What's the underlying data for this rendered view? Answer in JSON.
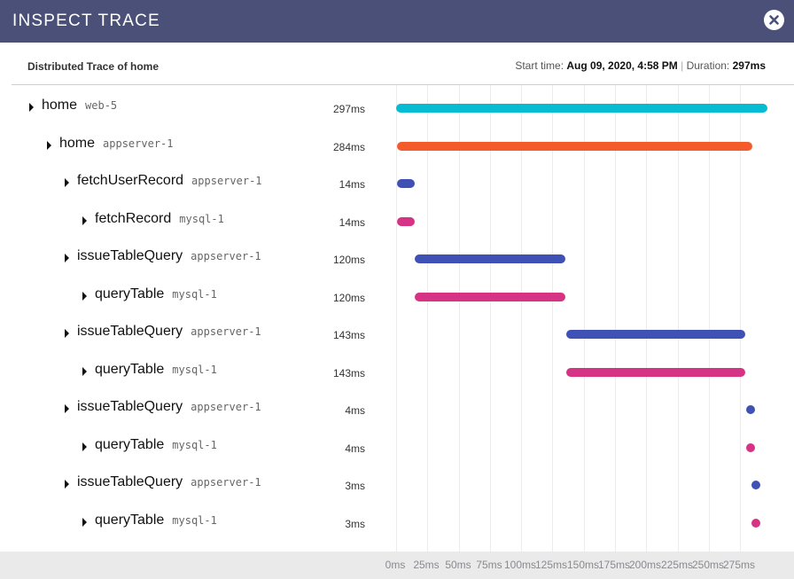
{
  "window": {
    "title": "INSPECT TRACE",
    "close_icon": "close-icon"
  },
  "trace": {
    "title": "Distributed Trace of home",
    "start_label": "Start time:",
    "start_value": "Aug 09, 2020, 4:58 PM",
    "separator": "|",
    "duration_label": "Duration:",
    "duration_value": "297ms",
    "total_ms": 297
  },
  "colors": {
    "web": "#06bcd2",
    "root_app": "#f45b2b",
    "appserver": "#3f51b5",
    "mysql": "#d63384"
  },
  "spans": [
    {
      "name": "home",
      "service": "web-5",
      "duration": "297ms",
      "start_ms": 0,
      "duration_ms": 297,
      "depth": 0,
      "color": "#06bcd2"
    },
    {
      "name": "home",
      "service": "appserver-1",
      "duration": "284ms",
      "start_ms": 0.5,
      "duration_ms": 284,
      "depth": 1,
      "color": "#f45b2b"
    },
    {
      "name": "fetchUserRecord",
      "service": "appserver-1",
      "duration": "14ms",
      "start_ms": 1,
      "duration_ms": 14,
      "depth": 2,
      "color": "#3f51b5"
    },
    {
      "name": "fetchRecord",
      "service": "mysql-1",
      "duration": "14ms",
      "start_ms": 1,
      "duration_ms": 14,
      "depth": 3,
      "color": "#d63384"
    },
    {
      "name": "issueTableQuery",
      "service": "appserver-1",
      "duration": "120ms",
      "start_ms": 15,
      "duration_ms": 120,
      "depth": 2,
      "color": "#3f51b5"
    },
    {
      "name": "queryTable",
      "service": "mysql-1",
      "duration": "120ms",
      "start_ms": 15,
      "duration_ms": 120,
      "depth": 3,
      "color": "#d63384"
    },
    {
      "name": "issueTableQuery",
      "service": "appserver-1",
      "duration": "143ms",
      "start_ms": 136,
      "duration_ms": 143,
      "depth": 2,
      "color": "#3f51b5"
    },
    {
      "name": "queryTable",
      "service": "mysql-1",
      "duration": "143ms",
      "start_ms": 136,
      "duration_ms": 143,
      "depth": 3,
      "color": "#d63384"
    },
    {
      "name": "issueTableQuery",
      "service": "appserver-1",
      "duration": "4ms",
      "start_ms": 280,
      "duration_ms": 4,
      "depth": 2,
      "color": "#3f51b5"
    },
    {
      "name": "queryTable",
      "service": "mysql-1",
      "duration": "4ms",
      "start_ms": 280,
      "duration_ms": 4,
      "depth": 3,
      "color": "#d63384"
    },
    {
      "name": "issueTableQuery",
      "service": "appserver-1",
      "duration": "3ms",
      "start_ms": 284,
      "duration_ms": 3,
      "depth": 2,
      "color": "#3f51b5"
    },
    {
      "name": "queryTable",
      "service": "mysql-1",
      "duration": "3ms",
      "start_ms": 284,
      "duration_ms": 3,
      "depth": 3,
      "color": "#d63384"
    }
  ],
  "axis": {
    "ticks_ms": [
      0,
      25,
      50,
      75,
      100,
      125,
      150,
      175,
      200,
      225,
      250,
      275
    ],
    "tick_labels": [
      "0ms",
      "25ms",
      "50ms",
      "75ms",
      "100ms",
      "125ms",
      "150ms",
      "175ms",
      "200ms",
      "225ms",
      "250ms",
      "275ms"
    ]
  }
}
